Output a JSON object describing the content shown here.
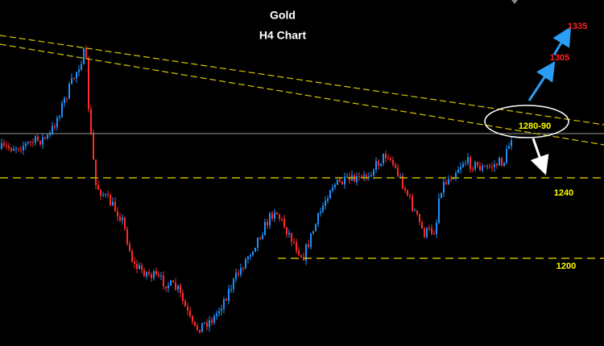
{
  "header": {
    "title": "Gold",
    "subtitle": "H4 Chart"
  },
  "annotations": {
    "target_high": "1335",
    "target_mid": "1305",
    "resistance_zone": "1280-90",
    "support_1": "1240",
    "support_2": "1200"
  }
}
